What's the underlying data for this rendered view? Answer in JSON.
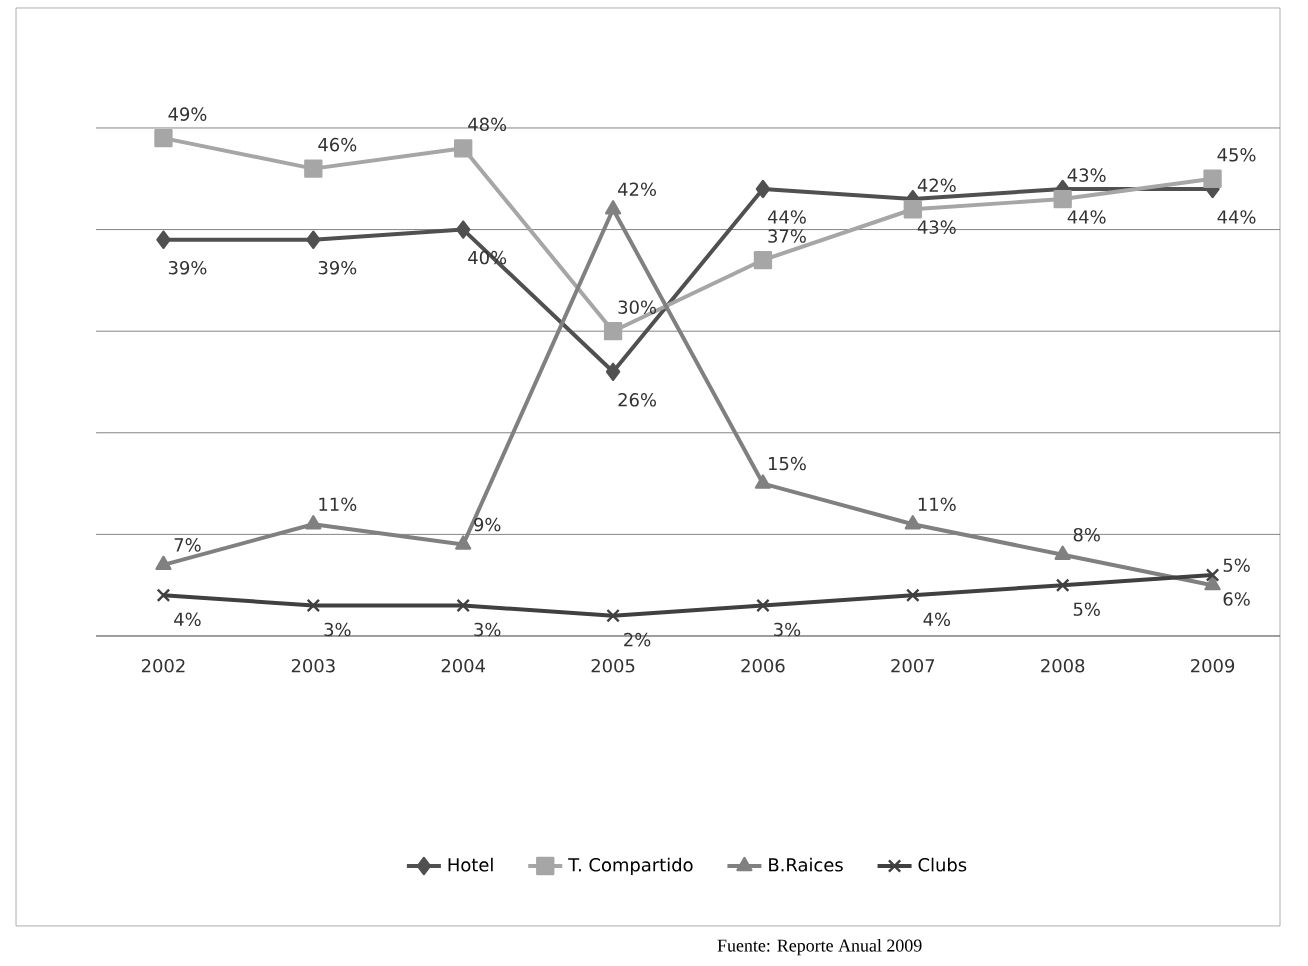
{
  "chart_data": {
    "type": "line",
    "categories": [
      "2002",
      "2003",
      "2004",
      "2005",
      "2006",
      "2007",
      "2008",
      "2009"
    ],
    "ylim": [
      0,
      50
    ],
    "yticks": [
      {
        "value": 0,
        "label": null
      },
      {
        "value": 10,
        "label": null
      },
      {
        "value": 20,
        "label": null
      },
      {
        "value": 30,
        "label": null
      },
      {
        "value": 40,
        "label": null
      },
      {
        "value": 50,
        "label": null
      }
    ],
    "grid": "y",
    "legend": "bottom",
    "tick_labels": "x",
    "series": [
      {
        "name": "Hotel",
        "color": "#505050",
        "marker": "diamond",
        "values": [
          39,
          39,
          40,
          26,
          44,
          43,
          44,
          44
        ],
        "value_labels": [
          "39%",
          "39%",
          "40%",
          "26%",
          "44%",
          "43%",
          "44%",
          "44%"
        ]
      },
      {
        "name": "T. Compartido",
        "color": "#a6a6a6",
        "marker": "square",
        "values": [
          49,
          46,
          48,
          30,
          37,
          42,
          43,
          45
        ],
        "value_labels": [
          "49%",
          "46%",
          "48%",
          "30%",
          "37%",
          "42%",
          "43%",
          "45%"
        ]
      },
      {
        "name": "B.Raices",
        "color": "#808080",
        "marker": "triangle",
        "values": [
          7,
          11,
          9,
          42,
          15,
          11,
          8,
          5
        ],
        "value_labels": [
          "7%",
          "11%",
          "9%",
          "42%",
          "15%",
          "11%",
          "8%",
          "5%"
        ]
      },
      {
        "name": "Clubs",
        "color": "#404040",
        "marker": "cross",
        "values": [
          4,
          3,
          3,
          2,
          3,
          4,
          5,
          6
        ],
        "value_labels": [
          "4%",
          "3%",
          "3%",
          "2%",
          "3%",
          "4%",
          "5%",
          "6%"
        ]
      }
    ],
    "annotations": [
      "Fuente: Reporte Anual 2009"
    ]
  }
}
